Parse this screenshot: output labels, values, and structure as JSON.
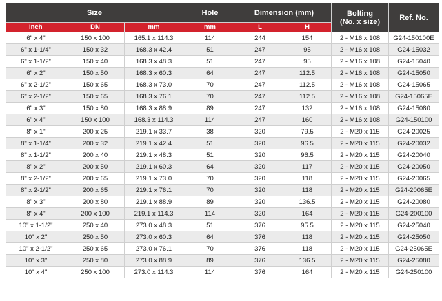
{
  "header": {
    "size": "Size",
    "hole": "Hole",
    "dimension": "Dimension (mm)",
    "bolting": "Bolting (No. x size)",
    "ref": "Ref. No.",
    "sub": [
      "Inch",
      "DN",
      "mm",
      "mm",
      "L",
      "H"
    ]
  },
  "colors": {
    "header_dark": "#3f3d3c",
    "header_red": "#d3232d",
    "row_alt": "#ebebeb"
  },
  "rows": [
    [
      "6\" x 4\"",
      "150 x 100",
      "165.1 x 114.3",
      "114",
      "244",
      "154",
      "2 - M16 x 108",
      "G24-150100E"
    ],
    [
      "6\" x 1-1/4\"",
      "150 x 32",
      "168.3 x 42.4",
      "51",
      "247",
      "95",
      "2 - M16 x 108",
      "G24-15032"
    ],
    [
      "6\" x 1-1/2\"",
      "150 x 40",
      "168.3 x 48.3",
      "51",
      "247",
      "95",
      "2 - M16 x 108",
      "G24-15040"
    ],
    [
      "6\" x 2\"",
      "150 x 50",
      "168.3 x 60.3",
      "64",
      "247",
      "112.5",
      "2 - M16 x 108",
      "G24-15050"
    ],
    [
      "6\" x 2-1/2\"",
      "150 x 65",
      "168.3 x 73.0",
      "70",
      "247",
      "112.5",
      "2 - M16 x 108",
      "G24-15065"
    ],
    [
      "6\" x 2-1/2\"",
      "150 x 65",
      "168.3 x 76.1",
      "70",
      "247",
      "112.5",
      "2 - M16 x 108",
      "G24-15065E"
    ],
    [
      "6\" x 3\"",
      "150 x 80",
      "168.3 x 88.9",
      "89",
      "247",
      "132",
      "2 - M16 x 108",
      "G24-15080"
    ],
    [
      "6\" x 4\"",
      "150 x 100",
      "168.3 x 114.3",
      "114",
      "247",
      "160",
      "2 - M16 x 108",
      "G24-150100"
    ],
    [
      "8\" x 1\"",
      "200 x 25",
      "219.1 x 33.7",
      "38",
      "320",
      "79.5",
      "2 - M20 x 115",
      "G24-20025"
    ],
    [
      "8\" x 1-1/4\"",
      "200 x 32",
      "219.1 x 42.4",
      "51",
      "320",
      "96.5",
      "2 - M20 x 115",
      "G24-20032"
    ],
    [
      "8\" x 1-1/2\"",
      "200 x 40",
      "219.1 x 48.3",
      "51",
      "320",
      "96.5",
      "2 - M20 x 115",
      "G24-20040"
    ],
    [
      "8\" x 2\"",
      "200 x 50",
      "219.1 x 60.3",
      "64",
      "320",
      "117",
      "2 - M20 x 115",
      "G24-20050"
    ],
    [
      "8\" x 2-1/2\"",
      "200 x 65",
      "219.1 x 73.0",
      "70",
      "320",
      "118",
      "2 - M20 x 115",
      "G24-20065"
    ],
    [
      "8\" x 2-1/2\"",
      "200 x 65",
      "219.1 x 76.1",
      "70",
      "320",
      "118",
      "2 - M20 x 115",
      "G24-20065E"
    ],
    [
      "8\" x 3\"",
      "200 x 80",
      "219.1 x 88.9",
      "89",
      "320",
      "136.5",
      "2 - M20 x 115",
      "G24-20080"
    ],
    [
      "8\" x 4\"",
      "200 x 100",
      "219.1 x 114.3",
      "114",
      "320",
      "164",
      "2 - M20 x 115",
      "G24-200100"
    ],
    [
      "10\" x 1-1/2\"",
      "250 x 40",
      "273.0 x 48.3",
      "51",
      "376",
      "95.5",
      "2 - M20 x 115",
      "G24-25040"
    ],
    [
      "10\" x 2\"",
      "250 x 50",
      "273.0 x 60.3",
      "64",
      "376",
      "118",
      "2 - M20 x 115",
      "G24-25050"
    ],
    [
      "10\" x 2-1/2\"",
      "250 x 65",
      "273.0 x 76.1",
      "70",
      "376",
      "118",
      "2 - M20 x 115",
      "G24-25065E"
    ],
    [
      "10\" x 3\"",
      "250 x 80",
      "273.0 x 88.9",
      "89",
      "376",
      "136.5",
      "2 - M20 x 115",
      "G24-25080"
    ],
    [
      "10\" x 4\"",
      "250 x 100",
      "273.0 x 114.3",
      "114",
      "376",
      "164",
      "2 - M20 x 115",
      "G24-250100"
    ]
  ]
}
